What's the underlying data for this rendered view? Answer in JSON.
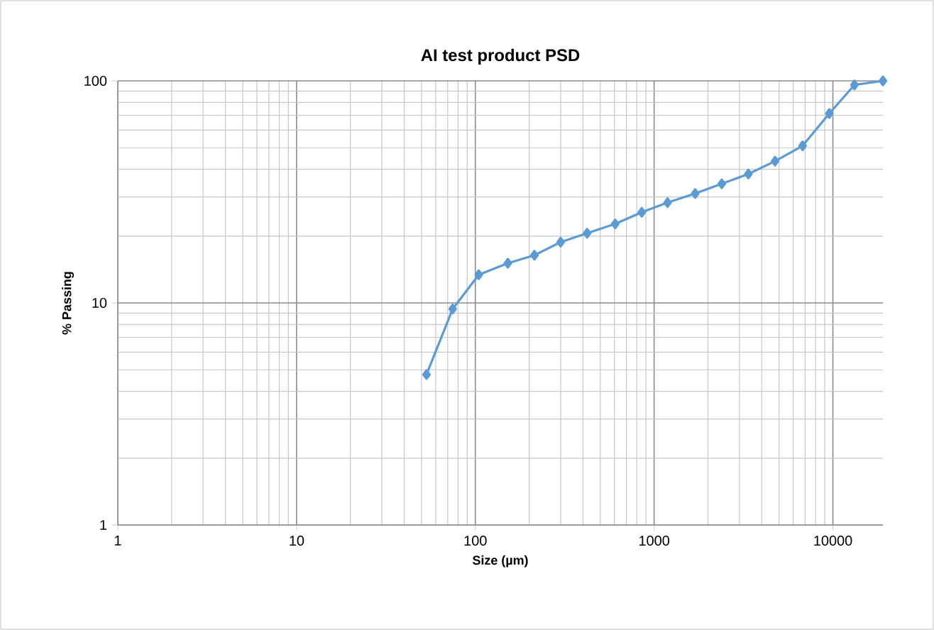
{
  "chart_data": {
    "type": "line",
    "title": "AI test product PSD",
    "xlabel": "Size (µm)",
    "ylabel": "% Passing",
    "log": "xy",
    "grid": true,
    "marker": "diamond",
    "line_style": "solid",
    "xlim": [
      1,
      19050
    ],
    "ylim": [
      1,
      100
    ],
    "xticks": [
      1,
      10,
      100,
      1000,
      10000
    ],
    "yticks": [
      1,
      10,
      100
    ],
    "x": [
      53.3,
      74.7,
      104.5,
      152,
      214,
      300,
      422,
      606,
      853,
      1189,
      1698,
      2390,
      3367,
      4750,
      6770,
      9550,
      13200,
      19050
    ],
    "series": [
      {
        "color": "#5b9bd5",
        "values": [
          4.76,
          9.4,
          13.4,
          15.1,
          16.4,
          18.8,
          20.6,
          22.7,
          25.6,
          28.3,
          31.1,
          34.4,
          38.1,
          43.5,
          51.0,
          71.3,
          95.9,
          100
        ]
      }
    ]
  }
}
